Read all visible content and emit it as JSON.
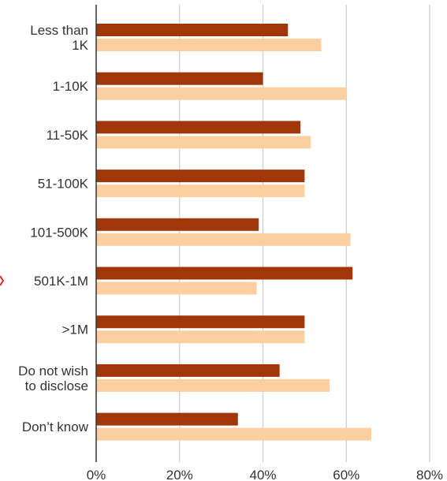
{
  "chart_data": {
    "type": "bar",
    "orientation": "horizontal",
    "categories": [
      [
        "Less than",
        "1K"
      ],
      [
        "1-10K"
      ],
      [
        "11-50K"
      ],
      [
        "51-100K"
      ],
      [
        "101-500K"
      ],
      [
        "501K-1M"
      ],
      [
        ">1M"
      ],
      [
        "Do not wish",
        "to disclose"
      ],
      [
        "Don’t know"
      ]
    ],
    "series": [
      {
        "color": "#a0360a",
        "values": [
          46,
          40,
          49,
          50,
          39,
          61.5,
          50,
          44,
          34
        ]
      },
      {
        "color": "#fbcfa0",
        "values": [
          54,
          60,
          51.5,
          50,
          61,
          38.5,
          50,
          56,
          66
        ]
      }
    ],
    "xlim": [
      0,
      80
    ],
    "xticks": [
      0,
      20,
      40,
      60,
      80
    ],
    "xtick_labels": [
      "0%",
      "20%",
      "40%",
      "60%",
      "80%"
    ],
    "grid": "vertical",
    "marker_color": "#e8251e"
  }
}
